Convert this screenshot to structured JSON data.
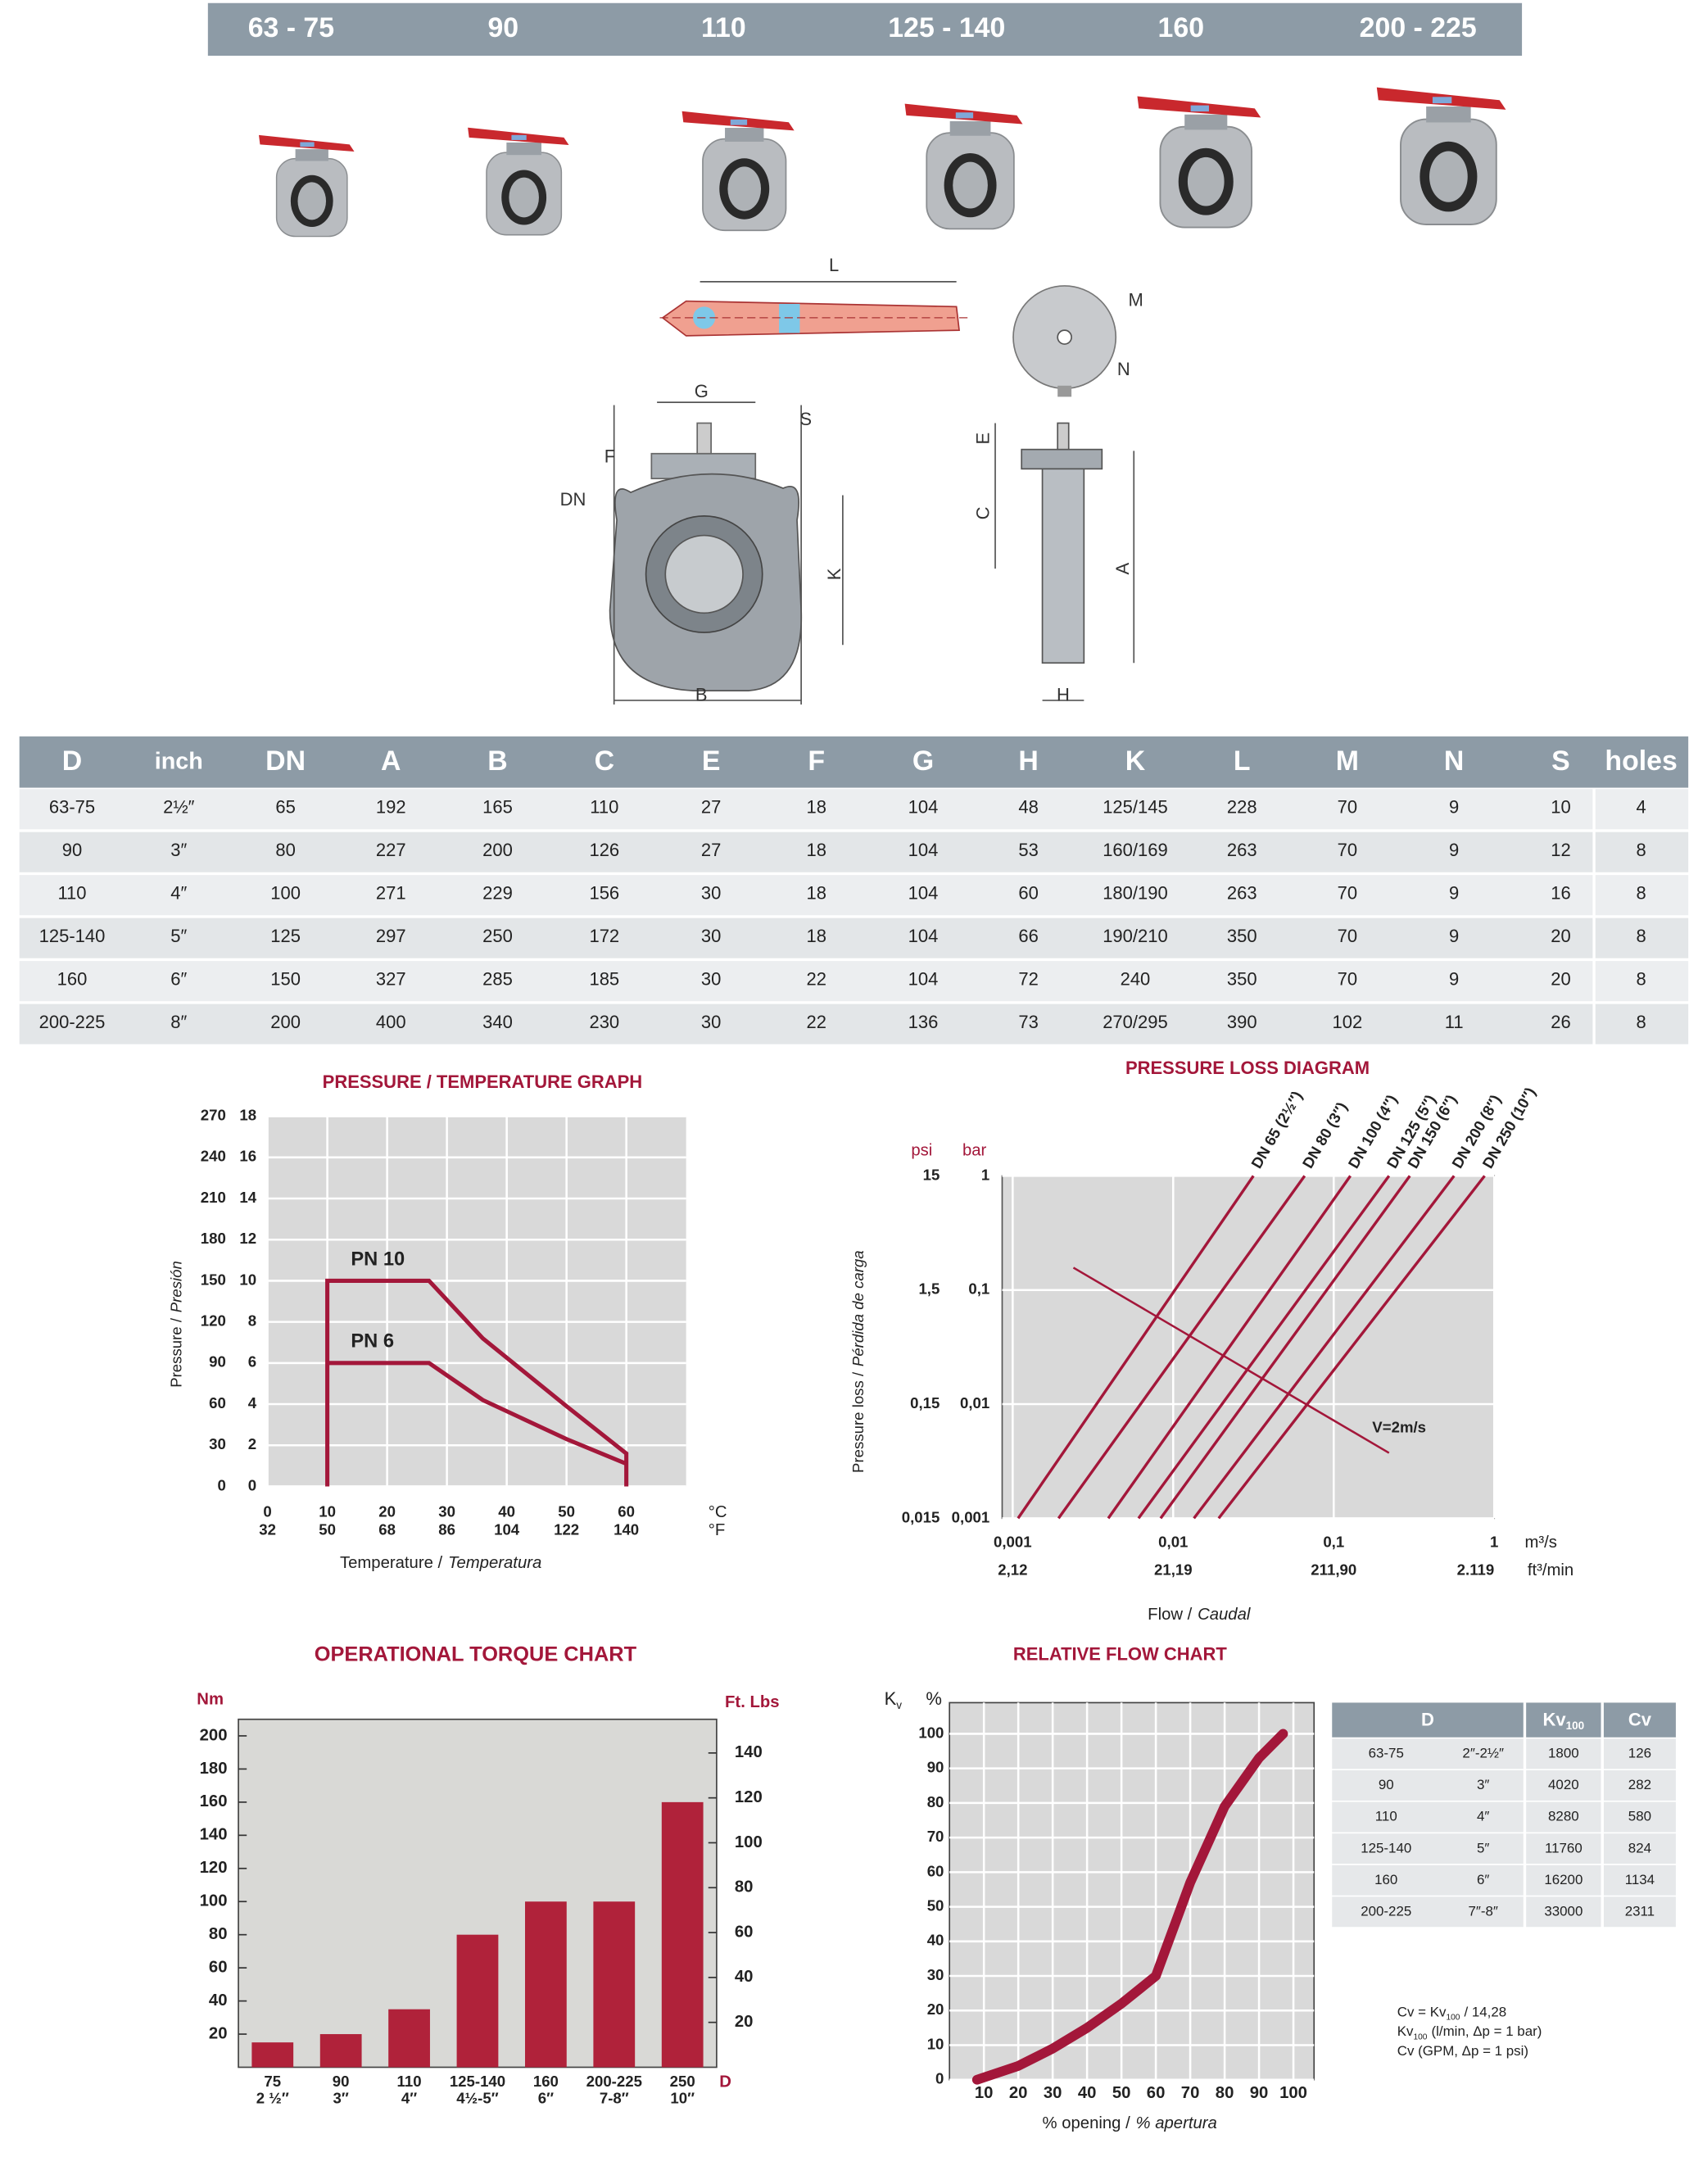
{
  "size_header": [
    "63 - 75",
    "90",
    "110",
    "125 - 140",
    "160",
    "200 - 225"
  ],
  "drawing_labels": [
    "L",
    "M",
    "N",
    "G",
    "S",
    "F",
    "DN",
    "K",
    "B",
    "E",
    "C",
    "A",
    "H"
  ],
  "dimensions_table": {
    "columns": [
      "D",
      "inch",
      "DN",
      "A",
      "B",
      "C",
      "E",
      "F",
      "G",
      "H",
      "K",
      "L",
      "M",
      "N",
      "S",
      "holes"
    ],
    "rows": [
      [
        "63-75",
        "2½″",
        65,
        192,
        165,
        110,
        27,
        18,
        104,
        48,
        "125/145",
        228,
        70,
        9,
        10,
        4
      ],
      [
        "90",
        "3″",
        80,
        227,
        200,
        126,
        27,
        18,
        104,
        53,
        "160/169",
        263,
        70,
        9,
        12,
        8
      ],
      [
        "110",
        "4″",
        100,
        271,
        229,
        156,
        30,
        18,
        104,
        60,
        "180/190",
        263,
        70,
        9,
        16,
        8
      ],
      [
        "125-140",
        "5″",
        125,
        297,
        250,
        172,
        30,
        18,
        104,
        66,
        "190/210",
        350,
        70,
        9,
        20,
        8
      ],
      [
        "160",
        "6″",
        150,
        327,
        285,
        185,
        30,
        22,
        104,
        72,
        240,
        350,
        70,
        9,
        20,
        8
      ],
      [
        "200-225",
        "8″",
        200,
        400,
        340,
        230,
        30,
        22,
        136,
        73,
        "270/295",
        390,
        102,
        11,
        26,
        8
      ]
    ]
  },
  "pressure_temperature": {
    "type": "line",
    "title": "PRESSURE / TEMPERATURE GRAPH",
    "y_label": "Pressure /",
    "y_label_alt": "Presión",
    "x_label": "Temperature /",
    "x_label_alt": "Temperatura",
    "x_unit": "°C",
    "x2_unit": "°F",
    "xlim": [
      0,
      70
    ],
    "xticks": [
      0,
      10,
      20,
      30,
      40,
      50,
      60
    ],
    "x2lim": [
      32,
      158
    ],
    "x2ticks": [
      32,
      50,
      68,
      86,
      104,
      122,
      140
    ],
    "ylim": [
      0,
      18
    ],
    "yticks": [
      0,
      2,
      4,
      6,
      8,
      10,
      12,
      14,
      16,
      18
    ],
    "y2lim": [
      0,
      270
    ],
    "y2ticks": [
      0,
      30,
      60,
      90,
      120,
      150,
      180,
      210,
      240,
      270
    ],
    "grid": true,
    "series": [
      {
        "name": "PN 10",
        "color": "#a3173a",
        "x": [
          10,
          10,
          27,
          36,
          50,
          60,
          60
        ],
        "values": [
          0,
          10,
          10,
          7.2,
          3.9,
          1.6,
          0
        ]
      },
      {
        "name": "PN 6",
        "color": "#a3173a",
        "x": [
          10,
          27,
          36,
          50,
          60
        ],
        "values": [
          6,
          6,
          4.2,
          2.3,
          1.1
        ]
      }
    ]
  },
  "pressure_loss": {
    "type": "line",
    "title": "PRESSURE LOSS DIAGRAM",
    "log_scale": true,
    "y_label": "Pressure loss /",
    "y_label_alt": "Pérdida de carga",
    "x_label": "Flow /",
    "x_label_alt": "Caudal",
    "y_unit": "bar",
    "y2_unit": "psi",
    "x_unit": "m³/s",
    "x2_unit": "ft³/min",
    "xlim": [
      0.00086,
      1
    ],
    "xticks": [
      {
        "value": 0.001,
        "label": "0,001"
      },
      {
        "value": 0.01,
        "label": "0,01"
      },
      {
        "value": 0.1,
        "label": "0,1"
      },
      1
    ],
    "x2lim": [
      1.822,
      2119
    ],
    "x2ticks": [
      {
        "value": 2.12,
        "label": "2,12"
      },
      {
        "value": 21.19,
        "label": "21,19"
      },
      {
        "value": 211.9,
        "label": "211,90"
      },
      {
        "value": 2119,
        "label": "2.119"
      }
    ],
    "ylim": [
      0.001,
      1
    ],
    "yticks": [
      {
        "value": 0.001,
        "label": "0,001"
      },
      {
        "value": 0.01,
        "label": "0,01"
      },
      {
        "value": 0.1,
        "label": "0,1"
      },
      1
    ],
    "y2lim": [
      0.015,
      15
    ],
    "y2ticks": [
      {
        "value": 0.015,
        "label": "0,015"
      },
      {
        "value": 0.15,
        "label": "0,15"
      },
      {
        "value": 1.5,
        "label": "1,5"
      },
      15
    ],
    "grid": true,
    "series": [
      {
        "name": "DN 65 (2½″)",
        "color": "#a3173a",
        "x": [
          0.00108,
          0.0316
        ],
        "values": [
          0.001,
          1
        ]
      },
      {
        "name": "DN 80 (3″)",
        "color": "#a3173a",
        "x": [
          0.00193,
          0.0659
        ],
        "values": [
          0.001,
          1
        ]
      },
      {
        "name": "DN 100 (4″)",
        "color": "#a3173a",
        "x": [
          0.00394,
          0.127
        ],
        "values": [
          0.001,
          1
        ]
      },
      {
        "name": "DN 125 (5″)",
        "color": "#a3173a",
        "x": [
          0.00608,
          0.221
        ],
        "values": [
          0.001,
          1
        ]
      },
      {
        "name": "DN 150 (6″)",
        "color": "#a3173a",
        "x": [
          0.00835,
          0.298
        ],
        "values": [
          0.001,
          1
        ]
      },
      {
        "name": "DN 200 (8″)",
        "color": "#a3173a",
        "x": [
          0.01346,
          0.562
        ],
        "values": [
          0.001,
          1
        ]
      },
      {
        "name": "DN 250 (10″)",
        "color": "#a3173a",
        "x": [
          0.0192,
          0.871
        ],
        "values": [
          0.001,
          1
        ]
      }
    ],
    "velocity_line": {
      "name": "V=2m/s",
      "color": "#a3173a",
      "x": [
        0.00239,
        0.221
      ],
      "values": [
        0.157,
        0.00374
      ]
    }
  },
  "torque": {
    "type": "bar",
    "title": "OPERATIONAL TORQUE CHART",
    "y_unit": "Nm",
    "y2_unit": "Ft. Lbs",
    "x_unit": "D",
    "categories": [
      [
        "75",
        "2 ½″"
      ],
      [
        "90",
        "3″"
      ],
      [
        "110",
        "4″"
      ],
      [
        "125-140",
        "4½-5″"
      ],
      [
        "160",
        "6″"
      ],
      [
        "200-225",
        "7-8″"
      ],
      [
        "250",
        "10″"
      ]
    ],
    "values": [
      15,
      20,
      35,
      80,
      100,
      100,
      160
    ],
    "color": "#b0223a",
    "ylim": [
      0,
      210
    ],
    "yticks": [
      20,
      40,
      60,
      80,
      100,
      120,
      140,
      160,
      180,
      200
    ],
    "y2lim": [
      0,
      155
    ],
    "y2ticks": [
      20,
      40,
      60,
      80,
      100,
      120,
      140
    ]
  },
  "relative_flow": {
    "type": "line",
    "title": "RELATIVE FLOW CHART",
    "y_unit": "K",
    "y_unit_sub": "v",
    "y_unit2": "%",
    "x_label": "% opening /",
    "x_label_alt": "% apertura",
    "xlim": [
      0,
      106
    ],
    "xticks": [
      10,
      20,
      30,
      40,
      50,
      60,
      70,
      80,
      90,
      100
    ],
    "ylim": [
      0,
      109
    ],
    "yticks": [
      0,
      10,
      20,
      30,
      40,
      50,
      60,
      70,
      80,
      90,
      100
    ],
    "grid": true,
    "series": [
      {
        "name": "Kv",
        "color": "#a3173a",
        "x": [
          8,
          20,
          30,
          40,
          50,
          60,
          70,
          80,
          90,
          97
        ],
        "values": [
          0,
          4,
          9,
          15,
          22,
          30,
          57,
          79,
          93,
          100
        ]
      }
    ]
  },
  "flow_table": {
    "columns": [
      "D",
      "Kv",
      "Cv"
    ],
    "kv_sub": "100",
    "rows": [
      [
        "63-75",
        "2″-2½″",
        1800,
        126
      ],
      [
        "90",
        "3″",
        4020,
        282
      ],
      [
        "110",
        "4″",
        8280,
        580
      ],
      [
        "125-140",
        "5″",
        11760,
        824
      ],
      [
        "160",
        "6″",
        16200,
        1134
      ],
      [
        "200-225",
        "7″-8″",
        33000,
        2311
      ]
    ],
    "notes": [
      {
        "main": "Cv = Kv",
        "sub": "100",
        "rest": "/ 14,28"
      },
      {
        "main": "Kv",
        "sub": "100",
        "rest": "(l/min, Δp = 1 bar)"
      },
      {
        "main": "Cv (GPM, Δp = 1 psi)"
      }
    ]
  }
}
